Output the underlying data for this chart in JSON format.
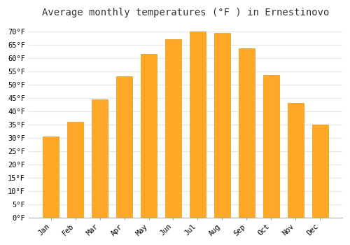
{
  "title": "Average monthly temperatures (°F ) in Ernestinovo",
  "months": [
    "Jan",
    "Feb",
    "Mar",
    "Apr",
    "May",
    "Jun",
    "Jul",
    "Aug",
    "Sep",
    "Oct",
    "Nov",
    "Dec"
  ],
  "values": [
    30.5,
    36.0,
    44.5,
    53.0,
    61.5,
    67.0,
    70.0,
    69.5,
    63.5,
    53.5,
    43.0,
    35.0
  ],
  "bar_color": "#FFA726",
  "bar_edge_color": "#E89A10",
  "background_color": "#FFFFFF",
  "grid_color": "#E8E8E8",
  "ylim": [
    0,
    73
  ],
  "yticks": [
    0,
    5,
    10,
    15,
    20,
    25,
    30,
    35,
    40,
    45,
    50,
    55,
    60,
    65,
    70
  ],
  "title_fontsize": 10,
  "tick_fontsize": 7.5,
  "font_family": "monospace"
}
